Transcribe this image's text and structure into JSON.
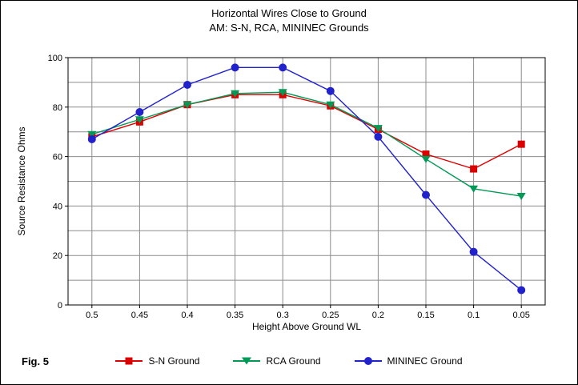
{
  "figure": {
    "title_line1": "Horizontal Wires Close to Ground",
    "title_line2": "AM: S-N, RCA, MININEC Grounds",
    "fig_label": "Fig. 5"
  },
  "chart_data": {
    "type": "line",
    "x_categories": [
      "0.5",
      "0.45",
      "0.4",
      "0.35",
      "0.3",
      "0.25",
      "0.2",
      "0.15",
      "0.1",
      "0.05"
    ],
    "xlabel": "Height Above Ground WL",
    "ylabel": "Source Resistance Ohms",
    "ylim": [
      0,
      100
    ],
    "y_ticks": [
      0,
      20,
      40,
      60,
      80,
      100
    ],
    "y_grid_step": 10,
    "grid": true,
    "legend_position": "bottom",
    "colors": {
      "grid": "#8c8c8c",
      "axis": "#000000",
      "sn_ground": "#dd0000",
      "rca_ground": "#009955",
      "mininec_ground": "#2222cc"
    },
    "series": [
      {
        "name": "S-N Ground",
        "marker": "square",
        "color": "#dd0000",
        "values": [
          68,
          74,
          81,
          85,
          85,
          80.5,
          71,
          61,
          55,
          65
        ]
      },
      {
        "name": "RCA Ground",
        "marker": "triangle-down",
        "color": "#009955",
        "values": [
          69,
          75,
          81,
          85.5,
          86,
          81,
          71.5,
          59,
          47,
          44
        ]
      },
      {
        "name": "MININEC Ground",
        "marker": "circle",
        "color": "#2222cc",
        "values": [
          67,
          78,
          89,
          96,
          96,
          86.5,
          68,
          44.5,
          21.5,
          6
        ]
      }
    ]
  }
}
